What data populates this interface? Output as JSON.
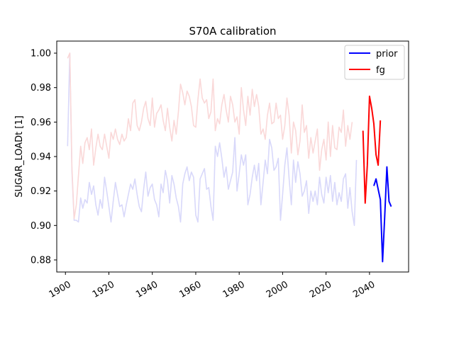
{
  "chart_data": {
    "type": "line",
    "title": "S70A calibration",
    "xlabel": "",
    "ylabel": "SUGAR_LOADt [1]",
    "xlim": [
      1896,
      2058
    ],
    "ylim": [
      0.873,
      1.007
    ],
    "x_ticks": [
      1900,
      1920,
      1940,
      1960,
      1980,
      2000,
      2020,
      2040
    ],
    "x_tick_labels": [
      "1900",
      "1920",
      "1940",
      "1960",
      "1980",
      "2000",
      "2020",
      "2040"
    ],
    "y_ticks": [
      0.88,
      0.9,
      0.92,
      0.94,
      0.96,
      0.98,
      1.0
    ],
    "y_tick_labels": [
      "0.88",
      "0.90",
      "0.92",
      "0.94",
      "0.96",
      "0.98",
      "1.00"
    ],
    "legend": {
      "placement": "top-right",
      "entries": [
        "prior",
        "fg"
      ]
    },
    "grid": false,
    "colors": {
      "prior": "#0000ff",
      "fg": "#ff0000",
      "prior_history": "#d8d8fa",
      "fg_history": "#fad8d8"
    },
    "series": [
      {
        "name": "prior",
        "x_start": 2042,
        "values": [
          0.923,
          0.927,
          0.921,
          0.915,
          0.879,
          0.905,
          0.934,
          0.914,
          0.911
        ]
      },
      {
        "name": "fg",
        "x_start": 2037,
        "values": [
          0.955,
          0.913,
          0.935,
          0.975,
          0.968,
          0.959,
          0.941,
          0.935,
          0.961
        ]
      },
      {
        "x_start": 1901,
        "values": [
          0.946,
          1.0,
          0.931,
          0.903,
          0.903,
          0.902,
          0.916,
          0.91,
          0.915,
          0.913,
          0.925,
          0.918,
          0.923,
          0.912,
          0.906,
          0.915,
          0.91,
          0.928,
          0.92,
          0.911,
          0.902,
          0.914,
          0.925,
          0.918,
          0.911,
          0.912,
          0.905,
          0.912,
          0.918,
          0.924,
          0.921,
          0.927,
          0.918,
          0.911,
          0.908,
          0.921,
          0.931,
          0.917,
          0.922,
          0.924,
          0.915,
          0.912,
          0.905,
          0.924,
          0.919,
          0.932,
          0.926,
          0.913,
          0.929,
          0.924,
          0.916,
          0.911,
          0.902,
          0.924,
          0.93,
          0.934,
          0.926,
          0.931,
          0.928,
          0.906,
          0.902,
          0.927,
          0.93,
          0.933,
          0.921,
          0.922,
          0.911,
          0.903,
          0.946,
          0.94,
          0.948,
          0.939,
          0.928,
          0.934,
          0.921,
          0.926,
          0.931,
          0.951,
          0.92,
          0.93,
          0.941,
          0.935,
          0.941,
          0.912,
          0.918,
          0.928,
          0.935,
          0.926,
          0.936,
          0.912,
          0.925,
          0.938,
          0.93,
          0.95,
          0.945,
          0.932,
          0.934,
          0.939,
          0.903,
          0.918,
          0.935,
          0.945,
          0.927,
          0.912,
          0.938,
          0.925,
          0.937,
          0.93,
          0.917,
          0.92,
          0.926,
          0.907,
          0.92,
          0.914,
          0.92,
          0.912,
          0.928,
          0.918,
          0.913,
          0.928,
          0.919,
          0.929,
          0.914,
          0.925,
          0.912,
          0.919,
          0.914,
          0.927,
          0.93,
          0.91,
          0.922,
          0.908,
          0.9,
          0.938
        ]
      },
      {
        "x_start": 1901,
        "values": [
          0.997,
          1.0,
          0.934,
          0.904,
          0.912,
          0.929,
          0.946,
          0.936,
          0.948,
          0.951,
          0.944,
          0.956,
          0.935,
          0.945,
          0.953,
          0.946,
          0.944,
          0.953,
          0.946,
          0.939,
          0.954,
          0.95,
          0.956,
          0.95,
          0.947,
          0.953,
          0.949,
          0.951,
          0.962,
          0.955,
          0.971,
          0.973,
          0.958,
          0.955,
          0.96,
          0.968,
          0.972,
          0.962,
          0.958,
          0.974,
          0.957,
          0.965,
          0.967,
          0.97,
          0.961,
          0.955,
          0.968,
          0.957,
          0.949,
          0.961,
          0.953,
          0.966,
          0.982,
          0.977,
          0.97,
          0.978,
          0.975,
          0.969,
          0.958,
          0.957,
          0.973,
          0.985,
          0.974,
          0.971,
          0.973,
          0.962,
          0.966,
          0.985,
          0.955,
          0.962,
          0.959,
          0.97,
          0.976,
          0.967,
          0.96,
          0.975,
          0.97,
          0.96,
          0.963,
          0.953,
          0.98,
          0.967,
          0.958,
          0.975,
          0.964,
          0.979,
          0.969,
          0.976,
          0.969,
          0.953,
          0.956,
          0.95,
          0.964,
          0.971,
          0.959,
          0.96,
          0.971,
          0.962,
          0.964,
          0.95,
          0.958,
          0.974,
          0.964,
          0.942,
          0.96,
          0.955,
          0.941,
          0.949,
          0.97,
          0.954,
          0.958,
          0.939,
          0.951,
          0.942,
          0.949,
          0.956,
          0.932,
          0.944,
          0.95,
          0.938,
          0.96,
          0.94,
          0.958,
          0.945,
          0.944,
          0.957,
          0.954,
          0.967,
          0.946,
          0.958,
          0.95,
          0.96
        ]
      }
    ]
  }
}
